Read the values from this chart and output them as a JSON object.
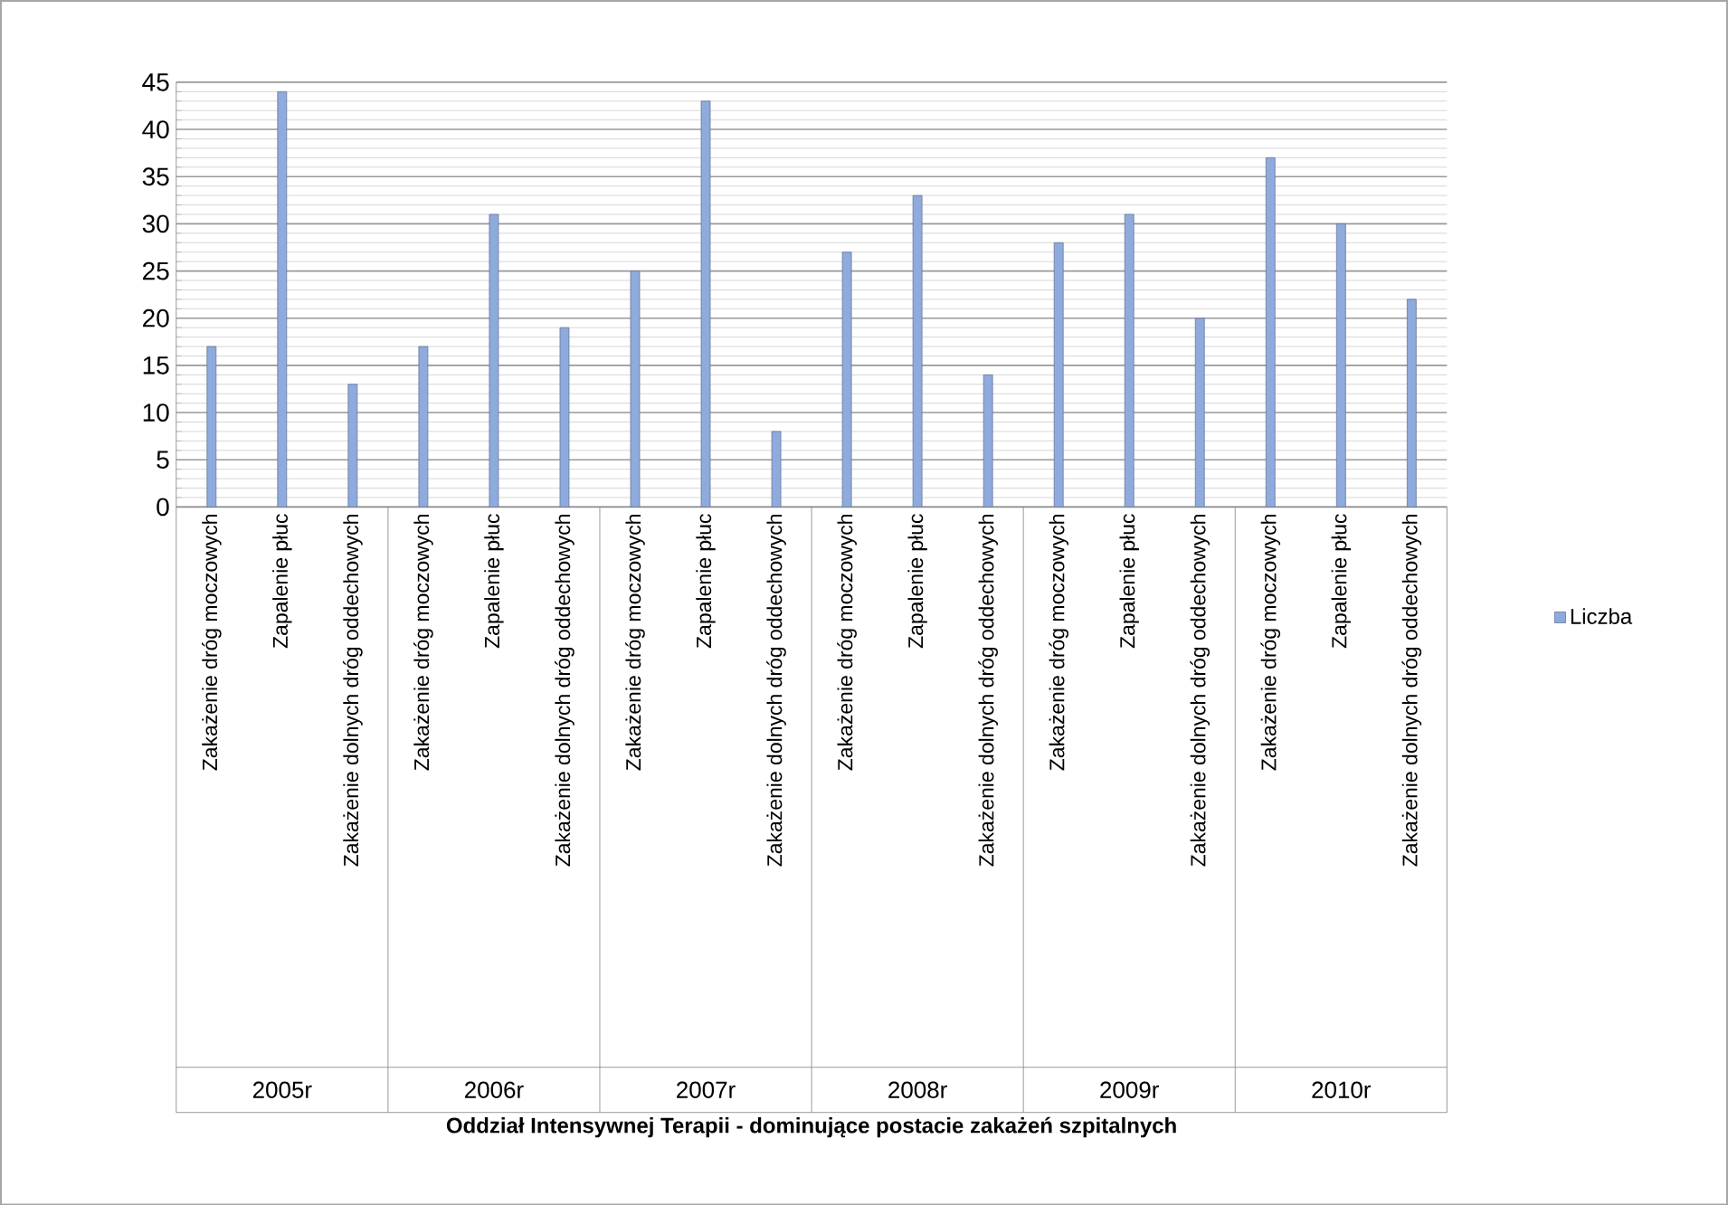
{
  "chart_data": {
    "type": "bar",
    "title": "Oddział Intensywnej Terapii - dominujące postacie zakażeń szpitalnych",
    "categories": [
      "Zakażenie dróg moczowych",
      "Zapalenie płuc",
      "Zakażenie dolnych dróg oddechowych",
      "Zakażenie dróg moczowych",
      "Zapalenie płuc",
      "Zakażenie dolnych dróg oddechowych",
      "Zakażenie dróg moczowych",
      "Zapalenie płuc",
      "Zakażenie dolnych dróg oddechowych",
      "Zakażenie dróg moczowych",
      "Zapalenie płuc",
      "Zakażenie dolnych dróg oddechowych",
      "Zakażenie dróg moczowych",
      "Zapalenie płuc",
      "Zakażenie dolnych dróg oddechowych",
      "Zakażenie dróg moczowych",
      "Zapalenie płuc",
      "Zakażenie dolnych dróg oddechowych"
    ],
    "series": [
      {
        "name": "Liczba",
        "color": "#8faadc",
        "values": [
          17,
          44,
          13,
          17,
          31,
          19,
          25,
          43,
          8,
          27,
          33,
          14,
          28,
          31,
          20,
          37,
          30,
          22
        ]
      }
    ],
    "annotations": [
      "2005r",
      "2006r",
      "2007r",
      "2008r",
      "2009r",
      "2010r"
    ],
    "ylim": [
      0,
      45
    ],
    "yticks": [
      0,
      5,
      10,
      15,
      20,
      25,
      30,
      35,
      40,
      45
    ],
    "grid": "y",
    "legend": "right"
  }
}
